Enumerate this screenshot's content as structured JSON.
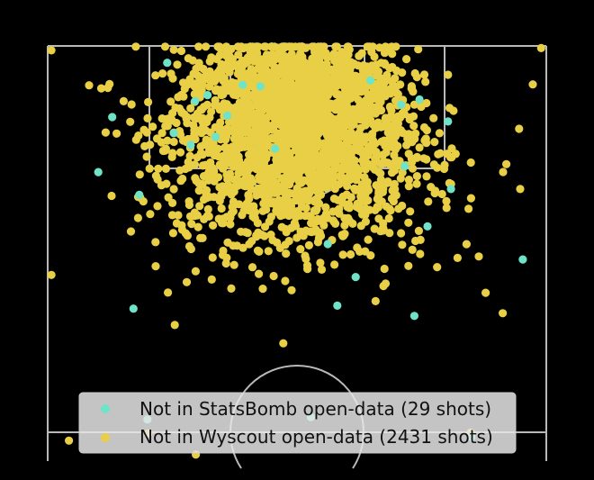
{
  "chart_data": {
    "type": "scatter",
    "title": "",
    "xlabel": "",
    "ylabel": "",
    "xlim": [
      0,
      68
    ],
    "ylim": [
      0,
      56.5
    ],
    "grid": false,
    "legend_position": "bottom-center",
    "colors": {
      "background": "#000000",
      "pitch_lines": "#b9b9b9",
      "legend_box": "#e6e6e6"
    },
    "series": [
      {
        "name": "Not in StatsBomb open-data (29 shots)",
        "color": "#6fe3c8",
        "points": [
          [
            21.8,
            49.8
          ],
          [
            16.3,
            54.2
          ],
          [
            22.9,
            44.1
          ],
          [
            50.7,
            49.2
          ],
          [
            54.6,
            46.2
          ],
          [
            6.9,
            39.3
          ],
          [
            51.8,
            31.9
          ],
          [
            11.7,
            20.7
          ],
          [
            50.0,
            19.7
          ],
          [
            64.8,
            27.4
          ],
          [
            48.7,
            40.1
          ],
          [
            17.2,
            44.6
          ],
          [
            38.2,
            29.5
          ],
          [
            31.0,
            42.5
          ],
          [
            24.5,
            47.0
          ],
          [
            20.1,
            49.0
          ],
          [
            12.5,
            36.2
          ],
          [
            55.0,
            37.0
          ],
          [
            42.0,
            25.0
          ],
          [
            29.0,
            51.0
          ],
          [
            57.8,
            3.2
          ],
          [
            35.9,
            5.9
          ],
          [
            13.6,
            5.6
          ],
          [
            19.5,
            43.0
          ],
          [
            48.2,
            48.5
          ],
          [
            44.0,
            51.8
          ],
          [
            26.6,
            51.2
          ],
          [
            8.8,
            46.8
          ],
          [
            39.5,
            21.1
          ]
        ]
      },
      {
        "name": "Not in Wyscout open-data (2431 shots)",
        "color": "#e8cf45",
        "points": "generated",
        "count": 2431
      }
    ]
  },
  "legend": {
    "items": [
      {
        "label": "Not in StatsBomb open-data (29 shots)",
        "color": "#6fe3c8"
      },
      {
        "label": "Not in Wyscout open-data (2431 shots)",
        "color": "#e8cf45"
      }
    ]
  }
}
